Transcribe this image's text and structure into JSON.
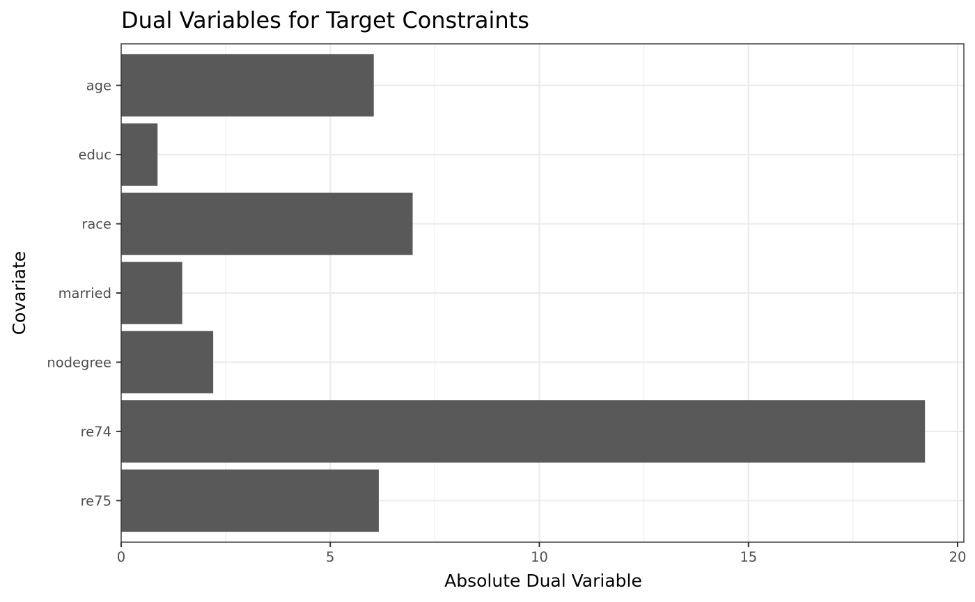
{
  "chart_data": {
    "type": "bar",
    "orientation": "horizontal",
    "title": "Dual Variables for Target Constraints",
    "xlabel": "Absolute Dual Variable",
    "ylabel": "Covariate",
    "categories": [
      "age",
      "educ",
      "race",
      "married",
      "nodegree",
      "re74",
      "re75"
    ],
    "values": [
      6.04,
      0.87,
      6.97,
      1.46,
      2.2,
      19.22,
      6.16
    ],
    "xlim": [
      0,
      20
    ],
    "xticks": [
      0,
      5,
      10,
      15,
      20
    ],
    "grid": true,
    "bar_color": "#595959"
  }
}
